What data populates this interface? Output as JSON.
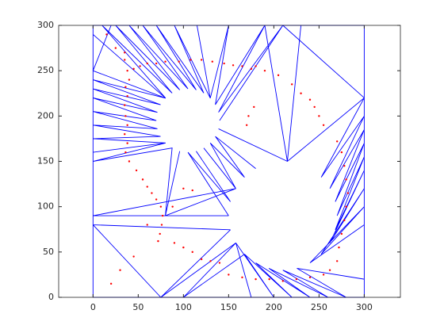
{
  "chart_data": {
    "type": "line",
    "xlim": [
      -38,
      340
    ],
    "ylim": [
      0,
      300
    ],
    "xticks": [
      0,
      50,
      100,
      150,
      200,
      250,
      300
    ],
    "yticks": [
      0,
      50,
      100,
      150,
      200,
      250,
      300
    ],
    "series": [
      {
        "color": "#0000ff",
        "x": [
          0,
          0,
          300,
          300,
          0,
          null,
          0,
          80.3,
          0,
          74.7,
          0,
          71.2,
          0,
          70,
          0,
          71.2,
          0,
          74.7,
          0,
          80.3,
          0,
          null,
          0,
          80.3,
          10,
          87.5,
          25,
          95.9,
          40,
          105,
          55,
          114.1,
          70,
          122.5,
          90,
          129.7,
          115,
          null,
          0,
          20,
          null,
          129.7,
          150,
          135.3,
          190,
          138.8,
          210,
          140,
          null,
          210,
          300,
          215,
          138.8,
          null,
          190,
          215,
          230,
          null,
          300,
          252.4,
          300,
          262,
          300,
          268,
          300,
          270,
          300,
          268,
          300,
          262,
          300,
          252.4,
          300,
          240,
          300,
          null,
          300,
          225.5,
          280,
          210,
          260,
          194.5,
          240,
          180,
          220,
          167.6,
          200,
          158,
          175,
          null,
          180,
          135.3,
          167.6,
          129.7,
          158,
          122.5,
          null,
          0,
          80.3,
          0,
          87.5,
          80,
          95.9,
          null,
          150,
          105,
          152,
          114.1,
          null,
          0,
          150,
          null,
          0,
          152,
          null,
          0,
          75,
          152,
          null,
          75,
          158,
          100,
          167.6,
          null,
          80,
          158,
          0
        ],
        "y": [
          0,
          300,
          300,
          0,
          0,
          null,
          250,
          219.7,
          240,
          212.5,
          230,
          204.1,
          220,
          195,
          205,
          185.9,
          190,
          177.5,
          175,
          170.3,
          160,
          null,
          290,
          219.7,
          300,
          225.3,
          300,
          228.8,
          300,
          230,
          300,
          228.8,
          300,
          225.3,
          300,
          219.7,
          300,
          null,
          250,
          300,
          null,
          219.7,
          300,
          212.5,
          300,
          204.1,
          300,
          195,
          null,
          300,
          220,
          150,
          185.9,
          null,
          300,
          150,
          300,
          null,
          220,
          132.4,
          200,
          120,
          185,
          105.5,
          170,
          90,
          155,
          74.5,
          140,
          60,
          120,
          47.6,
          100,
          38,
          80,
          null,
          20,
          32,
          0,
          30,
          0,
          32,
          0,
          38,
          0,
          47.6,
          0,
          60,
          0,
          null,
          142,
          177.5,
          132.4,
          170.3,
          120,
          164.7,
          null,
          160,
          170.3,
          150,
          164.7,
          90,
          161.2,
          null,
          90,
          160,
          105.5,
          161.2,
          null,
          90,
          90,
          null,
          80,
          74.5,
          null,
          80,
          0,
          74.5,
          null,
          0,
          60,
          0,
          47.6,
          null,
          90,
          120,
          90
        ]
      },
      {
        "color": "#ff0000",
        "marker": ".",
        "x": [
          35,
          38,
          40,
          36,
          38,
          35,
          36,
          38,
          35,
          38,
          36,
          40,
          45,
          52,
          60,
          70,
          80,
          95,
          108,
          120,
          132,
          145,
          155,
          165,
          175,
          48,
          55,
          60,
          65,
          70,
          75,
          77,
          76,
          74,
          72,
          90,
          100,
          110,
          120,
          130,
          140,
          150,
          165,
          180,
          195,
          210,
          225,
          240,
          255,
          262,
          270,
          272,
          275,
          278,
          280,
          282,
          280,
          278,
          275,
          270,
          255,
          250,
          245,
          240,
          230,
          220,
          205,
          190,
          180,
          170,
          172,
          178,
          100,
          110,
          88,
          60,
          45,
          20,
          30,
          15,
          25,
          35
        ],
        "y": [
          262,
          250,
          240,
          232,
          222,
          212,
          200,
          190,
          180,
          170,
          160,
          150,
          252,
          255,
          258,
          258,
          260,
          260,
          262,
          262,
          260,
          258,
          256,
          255,
          252,
          140,
          130,
          122,
          115,
          108,
          100,
          90,
          80,
          70,
          62,
          60,
          55,
          50,
          42,
          40,
          38,
          25,
          22,
          20,
          20,
          18,
          20,
          22,
          25,
          30,
          40,
          55,
          70,
          85,
          100,
          115,
          130,
          145,
          160,
          172,
          190,
          200,
          210,
          218,
          225,
          235,
          245,
          250,
          255,
          190,
          200,
          210,
          120,
          118,
          100,
          80,
          45,
          15,
          30,
          290,
          275,
          270
        ]
      }
    ]
  }
}
